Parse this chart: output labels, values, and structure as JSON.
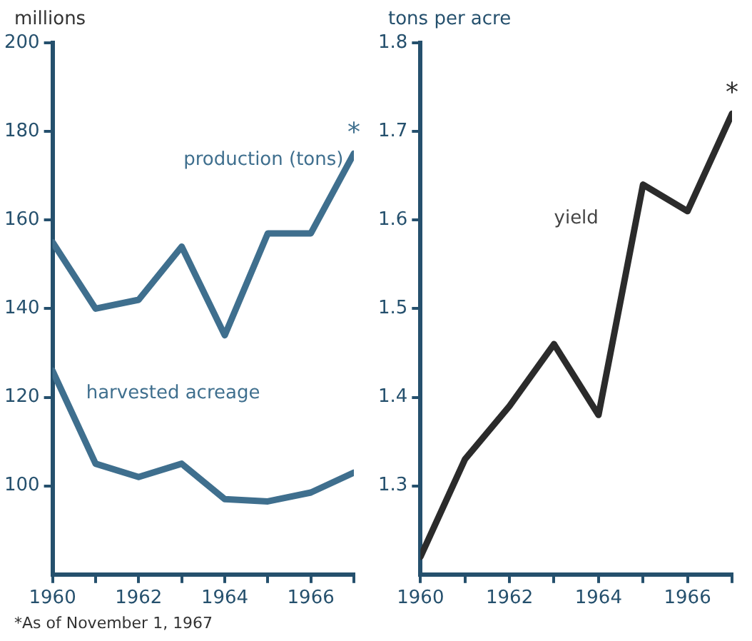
{
  "chart_data": [
    {
      "type": "line",
      "ylabel": "millions",
      "x": [
        1960,
        1961,
        1962,
        1963,
        1964,
        1965,
        1966,
        1967
      ],
      "xlim": [
        1960,
        1967
      ],
      "xticks": [
        1960,
        {
          "value": 1961,
          "label": null
        },
        1962,
        {
          "value": 1963,
          "label": null
        },
        1964,
        {
          "value": 1965,
          "label": null
        },
        1966,
        {
          "value": 1967,
          "label": null
        }
      ],
      "ylim": [
        80,
        200
      ],
      "yticks": [
        100,
        120,
        140,
        160,
        180,
        200
      ],
      "grid": false,
      "legend": false,
      "marker": "none",
      "line_style": "solid",
      "series": [
        {
          "name": "production (tons)",
          "color": "#3f6f8e",
          "values": [
            155,
            140,
            142,
            154,
            134,
            157,
            157,
            175
          ]
        },
        {
          "name": "harvested acreage",
          "color": "#3f6f8e",
          "values": [
            126,
            105,
            102,
            105,
            97,
            96.5,
            98.5,
            103
          ]
        }
      ],
      "annotations": [
        {
          "text": "*",
          "x": 1967,
          "y": 175
        },
        "*As of November 1, 1967"
      ]
    },
    {
      "type": "line",
      "ylabel": "tons per acre",
      "x": [
        1960,
        1961,
        1962,
        1963,
        1964,
        1965,
        1966,
        1967
      ],
      "xlim": [
        1960,
        1967
      ],
      "xticks": [
        1960,
        {
          "value": 1961,
          "label": null
        },
        1962,
        {
          "value": 1963,
          "label": null
        },
        1964,
        {
          "value": 1965,
          "label": null
        },
        1966,
        {
          "value": 1967,
          "label": null
        }
      ],
      "ylim": [
        1.2,
        1.8
      ],
      "yticks": [
        1.3,
        1.4,
        1.5,
        1.6,
        1.7,
        1.8
      ],
      "grid": false,
      "legend": false,
      "marker": "none",
      "line_style": "solid",
      "series": [
        {
          "name": "yield",
          "color": "#2b2b2b",
          "values": [
            1.22,
            1.33,
            1.39,
            1.46,
            1.38,
            1.64,
            1.61,
            1.72
          ]
        }
      ],
      "annotations": [
        {
          "text": "*",
          "x": 1967,
          "y": 1.72
        }
      ]
    }
  ]
}
